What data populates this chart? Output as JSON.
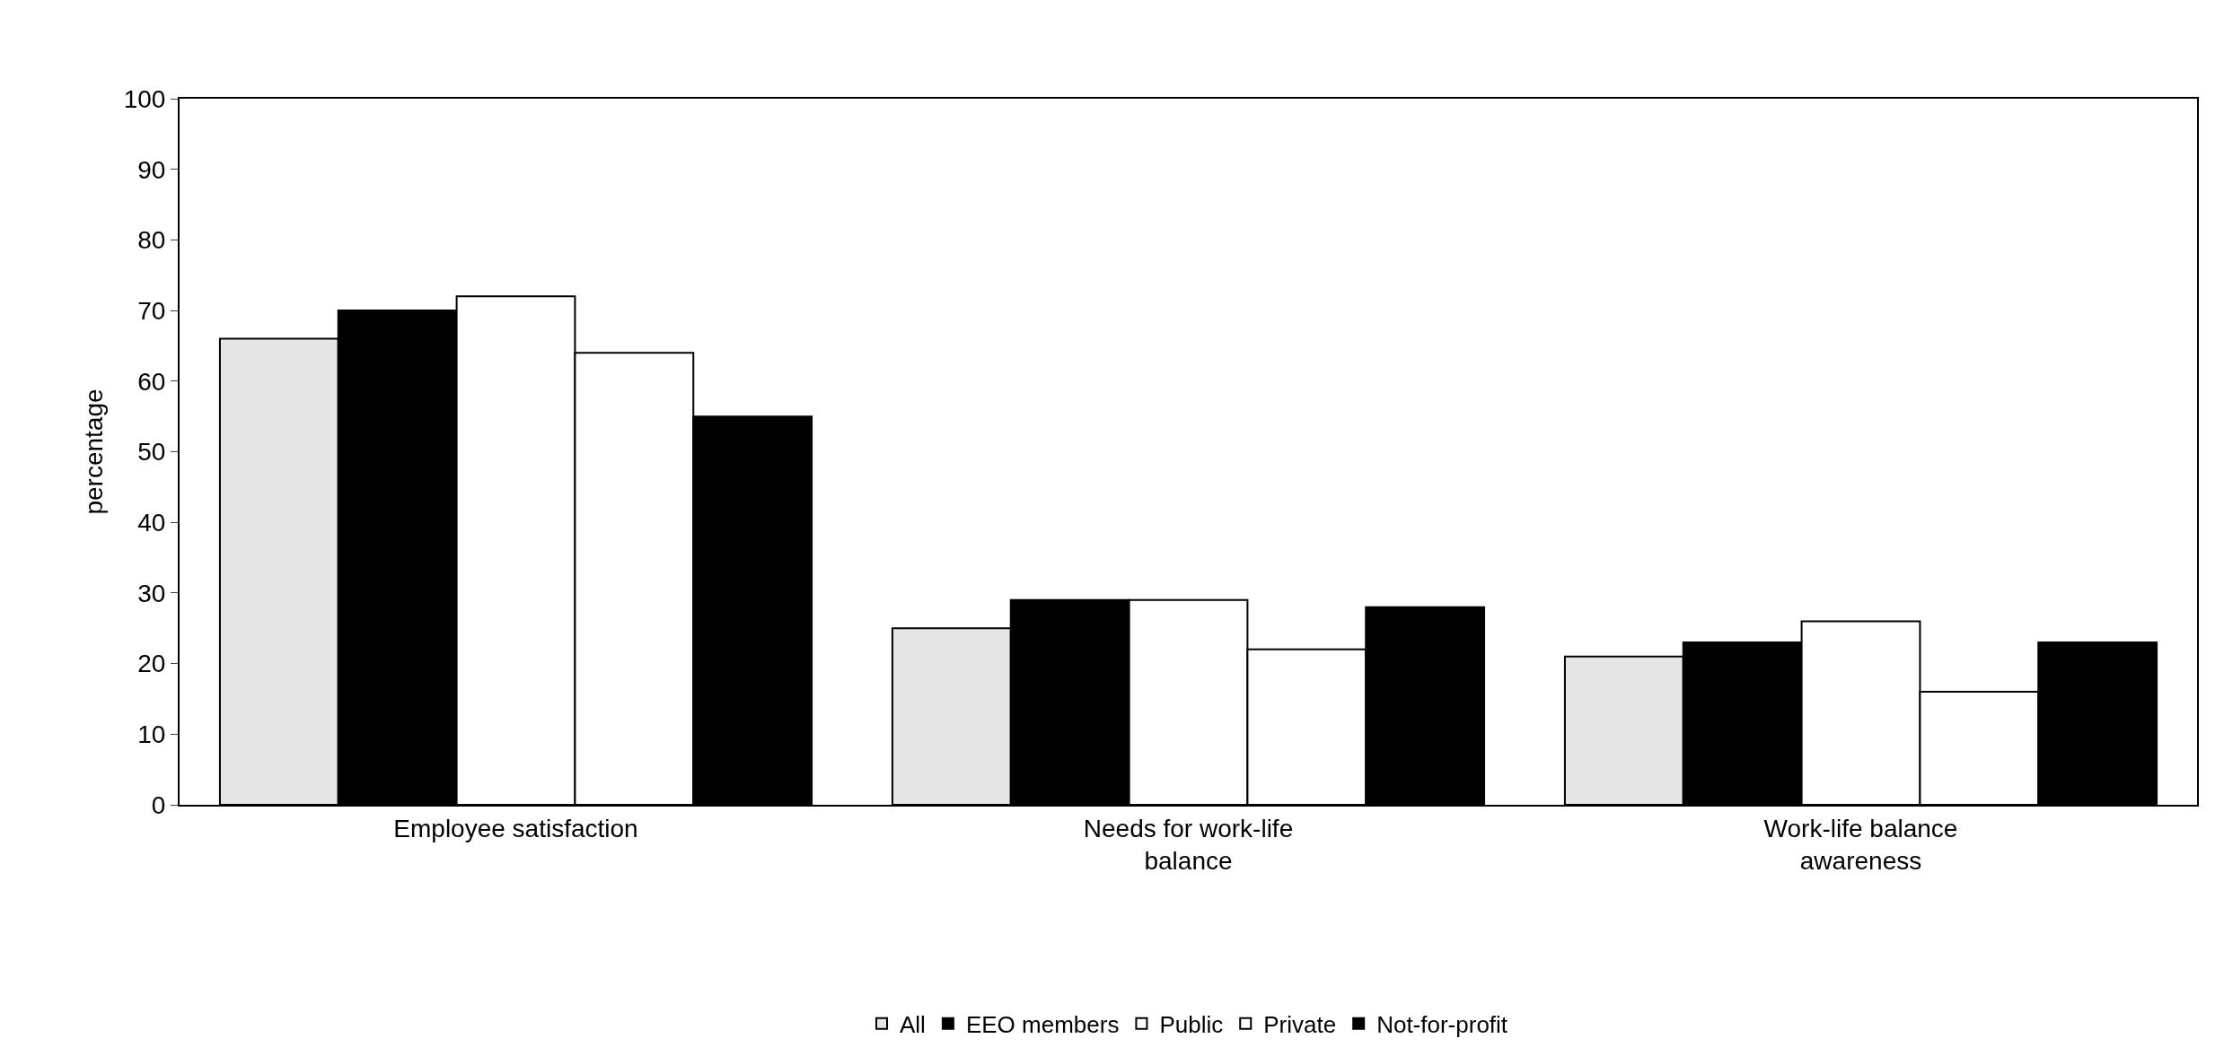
{
  "chart_data": {
    "type": "bar",
    "ylabel": "percentage",
    "categories": [
      "Employee satisfaction",
      "Needs for work-life balance",
      "Work-life balance awareness"
    ],
    "series": [
      {
        "name": "All",
        "color": "#e6e6e6",
        "values": [
          66,
          25,
          21
        ]
      },
      {
        "name": "EEO members",
        "color": "#000000",
        "values": [
          70,
          29,
          23
        ]
      },
      {
        "name": "Public",
        "color": "#ffffff",
        "values": [
          72,
          29,
          26
        ]
      },
      {
        "name": "Private",
        "color": "#ffffff",
        "values": [
          64,
          22,
          16
        ]
      },
      {
        "name": "Not-for-profit",
        "color": "#000000",
        "values": [
          55,
          28,
          23
        ]
      }
    ],
    "ylim": [
      0,
      100
    ],
    "yticks": [
      0,
      10,
      20,
      30,
      40,
      50,
      60,
      70,
      80,
      90,
      100
    ],
    "grid": false,
    "legend": "bottom"
  }
}
